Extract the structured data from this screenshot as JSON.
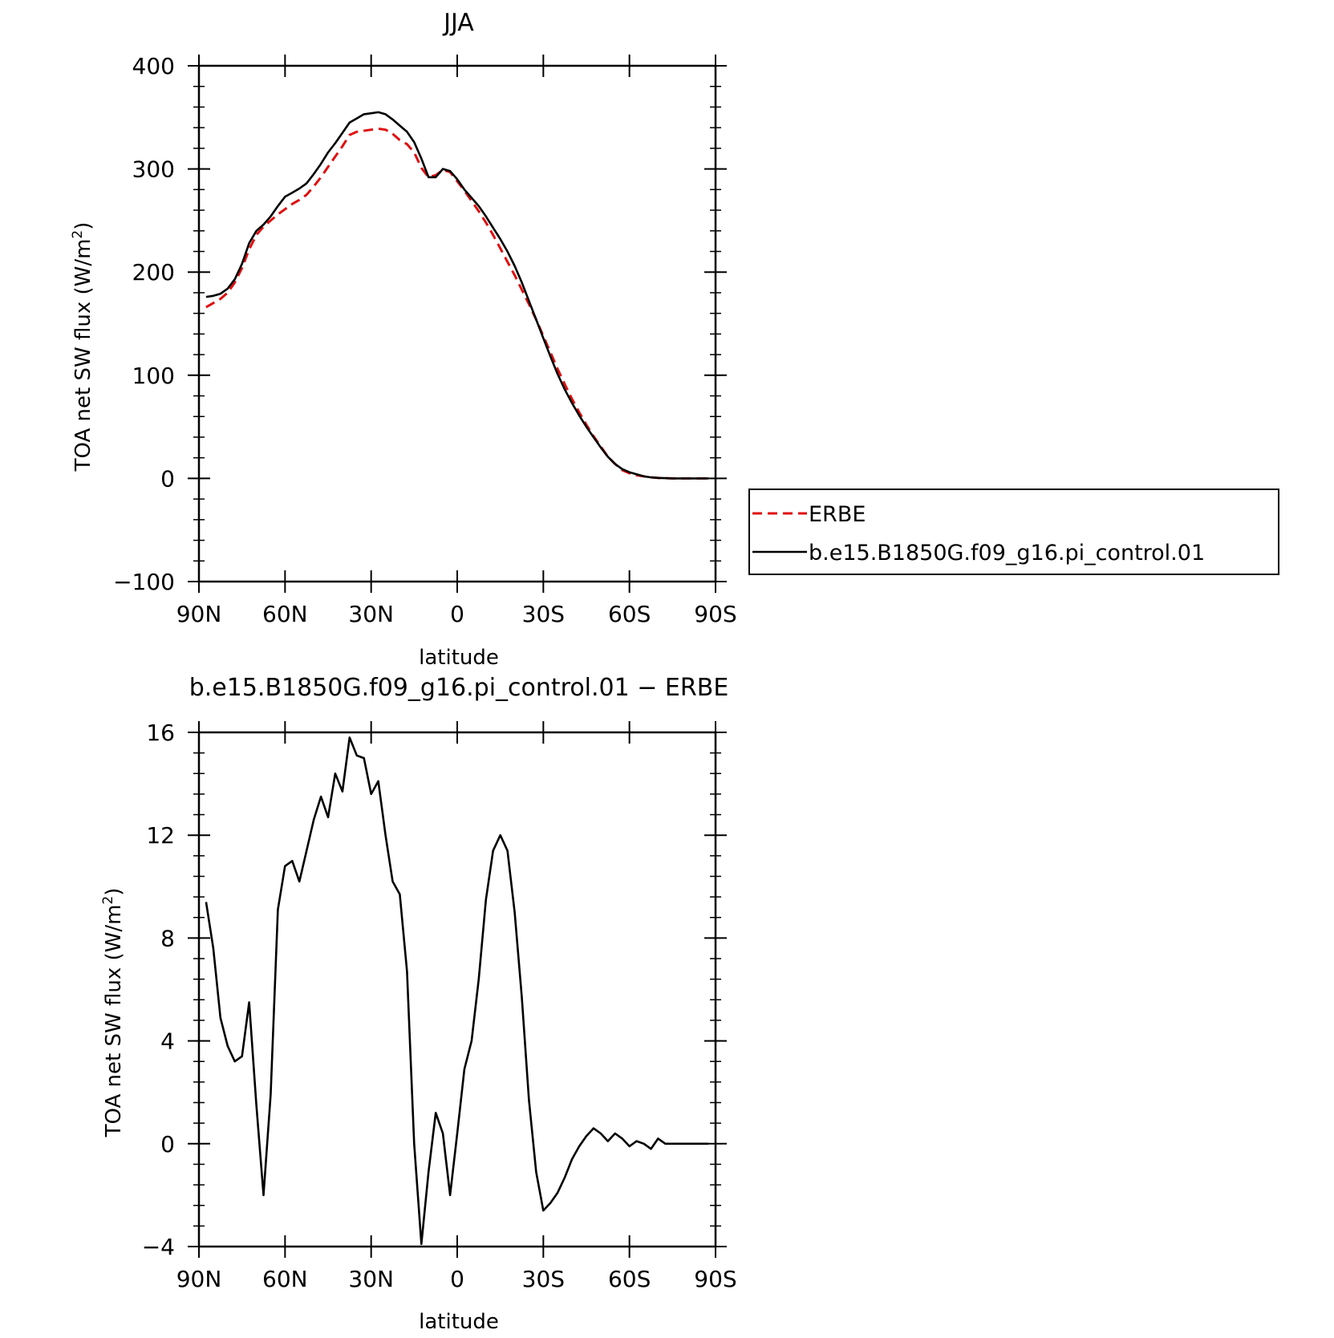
{
  "chart_data": [
    {
      "type": "line",
      "title": "JJA",
      "xlabel": "latitude",
      "ylabel": "TOA net SW flux (W/m²)",
      "ylabel_main": "TOA net SW flux (W/m",
      "ylabel_sup": "2",
      "ylabel_end": ")",
      "xlim": [
        90,
        -90
      ],
      "ylim": [
        -100,
        400
      ],
      "xticks": [
        90,
        60,
        30,
        0,
        -30,
        -60,
        -90
      ],
      "xtick_labels": [
        "90N",
        "60N",
        "30N",
        "0",
        "30S",
        "60S",
        "90S"
      ],
      "yticks": [
        -100,
        0,
        100,
        200,
        300,
        400
      ],
      "ytick_labels": [
        "−100",
        "0",
        "100",
        "200",
        "300",
        "400"
      ],
      "legend_position": "outside-right",
      "x": [
        87.5,
        85,
        82.5,
        80,
        77.5,
        75,
        72.5,
        70,
        67.5,
        65,
        62.5,
        60,
        57.5,
        55,
        52.5,
        50,
        47.5,
        45,
        42.5,
        40,
        37.5,
        35,
        32.5,
        30,
        27.5,
        25,
        22.5,
        20,
        17.5,
        15,
        12.5,
        10,
        7.5,
        5,
        2.5,
        0,
        -2.5,
        -5,
        -7.5,
        -10,
        -12.5,
        -15,
        -17.5,
        -20,
        -22.5,
        -25,
        -27.5,
        -30,
        -32.5,
        -35,
        -37.5,
        -40,
        -42.5,
        -45,
        -47.5,
        -50,
        -52.5,
        -55,
        -57.5,
        -60,
        -62.5,
        -65,
        -67.5,
        -70,
        -72.5,
        -75,
        -77.5,
        -80,
        -82.5,
        -85,
        -87.5
      ],
      "series": [
        {
          "name": "ERBE",
          "color": "#e01010",
          "dash": "dashed",
          "values": [
            166,
            170,
            174,
            180,
            190,
            204,
            222,
            236,
            244,
            250,
            256,
            261,
            266,
            270,
            275,
            283,
            292,
            302,
            312,
            322,
            333,
            336,
            337,
            338,
            339,
            338,
            334,
            328,
            324,
            316,
            301,
            292,
            294,
            299,
            297,
            288,
            279,
            269,
            259,
            248,
            236,
            223,
            210,
            197,
            183,
            169,
            154,
            138,
            122,
            106,
            91,
            77,
            64,
            52,
            41,
            31,
            21,
            14,
            8,
            5,
            3,
            2,
            1,
            0.5,
            0.2,
            0,
            0,
            0,
            0,
            0,
            0
          ]
        },
        {
          "name": "b.e15.B1850G.f09_g16.pi_control.01",
          "color": "#000000",
          "dash": "solid",
          "values": [
            176,
            177,
            179,
            184,
            193,
            208,
            228,
            240,
            246,
            254,
            264,
            273,
            277,
            281,
            286,
            295,
            305,
            316,
            325,
            335,
            345,
            349,
            353,
            354,
            355,
            353,
            348,
            342,
            336,
            326,
            310,
            292,
            292,
            300,
            298,
            290,
            280,
            272,
            264,
            254,
            243,
            232,
            220,
            206,
            190,
            172,
            154,
            136,
            118,
            101,
            86,
            73,
            61,
            50,
            40,
            30,
            21,
            14,
            9,
            6,
            4,
            2,
            1,
            0.5,
            0.2,
            0,
            0,
            0,
            0,
            0,
            0
          ]
        }
      ]
    },
    {
      "type": "line",
      "title": "b.e15.B1850G.f09_g16.pi_control.01 − ERBE",
      "xlabel": "latitude",
      "ylabel": "TOA net SW flux (W/m²)",
      "ylabel_main": "TOA net SW flux (W/m",
      "ylabel_sup": "2",
      "ylabel_end": ")",
      "xlim": [
        90,
        -90
      ],
      "ylim": [
        -4,
        16
      ],
      "xticks": [
        90,
        60,
        30,
        0,
        -30,
        -60,
        -90
      ],
      "xtick_labels": [
        "90N",
        "60N",
        "30N",
        "0",
        "30S",
        "60S",
        "90S"
      ],
      "yticks": [
        -4,
        0,
        4,
        8,
        12,
        16
      ],
      "ytick_labels": [
        "−4",
        "0",
        "4",
        "8",
        "12",
        "16"
      ],
      "x": [
        87.5,
        85,
        82.5,
        80,
        77.5,
        75,
        72.5,
        70,
        67.5,
        65,
        62.5,
        60,
        57.5,
        55,
        52.5,
        50,
        47.5,
        45,
        42.5,
        40,
        37.5,
        35,
        32.5,
        30,
        27.5,
        25,
        22.5,
        20,
        17.5,
        15,
        12.5,
        10,
        7.5,
        5,
        2.5,
        0,
        -2.5,
        -5,
        -7.5,
        -10,
        -12.5,
        -15,
        -17.5,
        -20,
        -22.5,
        -25,
        -27.5,
        -30,
        -32.5,
        -35,
        -37.5,
        -40,
        -42.5,
        -45,
        -47.5,
        -50,
        -52.5,
        -55,
        -57.5,
        -60,
        -62.5,
        -65,
        -67.5,
        -70,
        -72.5,
        -75,
        -77.5,
        -80,
        -82.5,
        -85,
        -87.5
      ],
      "series": [
        {
          "name": "",
          "color": "#000000",
          "dash": "solid",
          "values": [
            9.4,
            7.6,
            4.9,
            3.8,
            3.2,
            3.4,
            5.5,
            1.5,
            -2.0,
            1.9,
            9.1,
            10.8,
            11.0,
            10.2,
            11.4,
            12.6,
            13.5,
            12.7,
            14.4,
            13.7,
            15.8,
            15.1,
            15.0,
            13.6,
            14.1,
            12.0,
            10.2,
            9.7,
            6.7,
            0.0,
            -3.9,
            -1.1,
            1.2,
            0.4,
            -2.0,
            0.4,
            2.9,
            4.0,
            6.4,
            9.5,
            11.4,
            12.0,
            11.4,
            9.0,
            5.7,
            1.7,
            -1.1,
            -2.6,
            -2.3,
            -1.9,
            -1.3,
            -0.6,
            -0.1,
            0.3,
            0.6,
            0.4,
            0.1,
            0.4,
            0.2,
            -0.1,
            0.1,
            0.0,
            -0.2,
            0.2,
            0.0,
            0.0,
            0.0,
            0.0,
            0.0,
            0.0,
            0.0
          ]
        }
      ]
    }
  ]
}
